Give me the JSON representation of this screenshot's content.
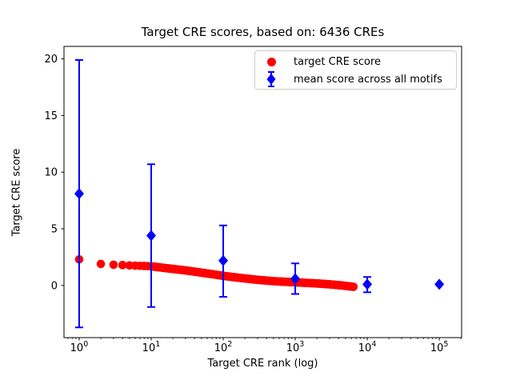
{
  "chart_data": {
    "type": "scatter",
    "title": "Target CRE scores, based on: 6436 CREs",
    "xlabel": "Target CRE rank (log)",
    "ylabel": "Target CRE score",
    "x_scale": "log",
    "grid": false,
    "xlim": [
      0.616,
      204000
    ],
    "ylim": [
      -4.6,
      21.1
    ],
    "y_ticks": [
      0,
      5,
      10,
      15,
      20
    ],
    "x_ticks": [
      {
        "value": 1,
        "base": "10",
        "exp": "0"
      },
      {
        "value": 10,
        "base": "10",
        "exp": "1"
      },
      {
        "value": 100,
        "base": "10",
        "exp": "2"
      },
      {
        "value": 1000,
        "base": "10",
        "exp": "3"
      },
      {
        "value": 10000,
        "base": "10",
        "exp": "4"
      },
      {
        "value": 100000,
        "base": "10",
        "exp": "5"
      }
    ],
    "legend": {
      "position": "upper right"
    },
    "series": [
      {
        "name": "target CRE score",
        "color": "#ff0000",
        "marker": "circle",
        "total_points": 6436,
        "note": "dense monotonically decreasing band of 6436 scores vs rank",
        "points_sampled": [
          [
            1,
            2.3
          ],
          [
            2,
            1.9
          ],
          [
            3,
            1.83
          ],
          [
            4,
            1.8
          ],
          [
            5,
            1.77
          ],
          [
            6,
            1.75
          ],
          [
            8,
            1.72
          ],
          [
            10,
            1.69
          ],
          [
            15,
            1.55
          ],
          [
            20,
            1.46
          ],
          [
            30,
            1.33
          ],
          [
            50,
            1.13
          ],
          [
            70,
            1.0
          ],
          [
            100,
            0.85
          ],
          [
            150,
            0.71
          ],
          [
            200,
            0.62
          ],
          [
            300,
            0.5
          ],
          [
            500,
            0.38
          ],
          [
            700,
            0.33
          ],
          [
            1000,
            0.28
          ],
          [
            1500,
            0.22
          ],
          [
            2000,
            0.18
          ],
          [
            3000,
            0.1
          ],
          [
            4500,
            0.0
          ],
          [
            6436,
            -0.12
          ]
        ]
      },
      {
        "name": "mean score across all motifs",
        "color": "#0000ff",
        "marker": "diamond",
        "points": [
          {
            "x": 1,
            "y": 8.1,
            "ylow": -3.7,
            "yhigh": 19.9
          },
          {
            "x": 10,
            "y": 4.4,
            "ylow": -1.9,
            "yhigh": 10.7
          },
          {
            "x": 100,
            "y": 2.2,
            "ylow": -1.0,
            "yhigh": 5.3
          },
          {
            "x": 1000,
            "y": 0.6,
            "ylow": -0.75,
            "yhigh": 1.95
          },
          {
            "x": 10000,
            "y": 0.1,
            "ylow": -0.6,
            "yhigh": 0.75
          },
          {
            "x": 100000,
            "y": 0.1,
            "ylow": 0.0,
            "yhigh": 0.2
          }
        ]
      }
    ]
  }
}
